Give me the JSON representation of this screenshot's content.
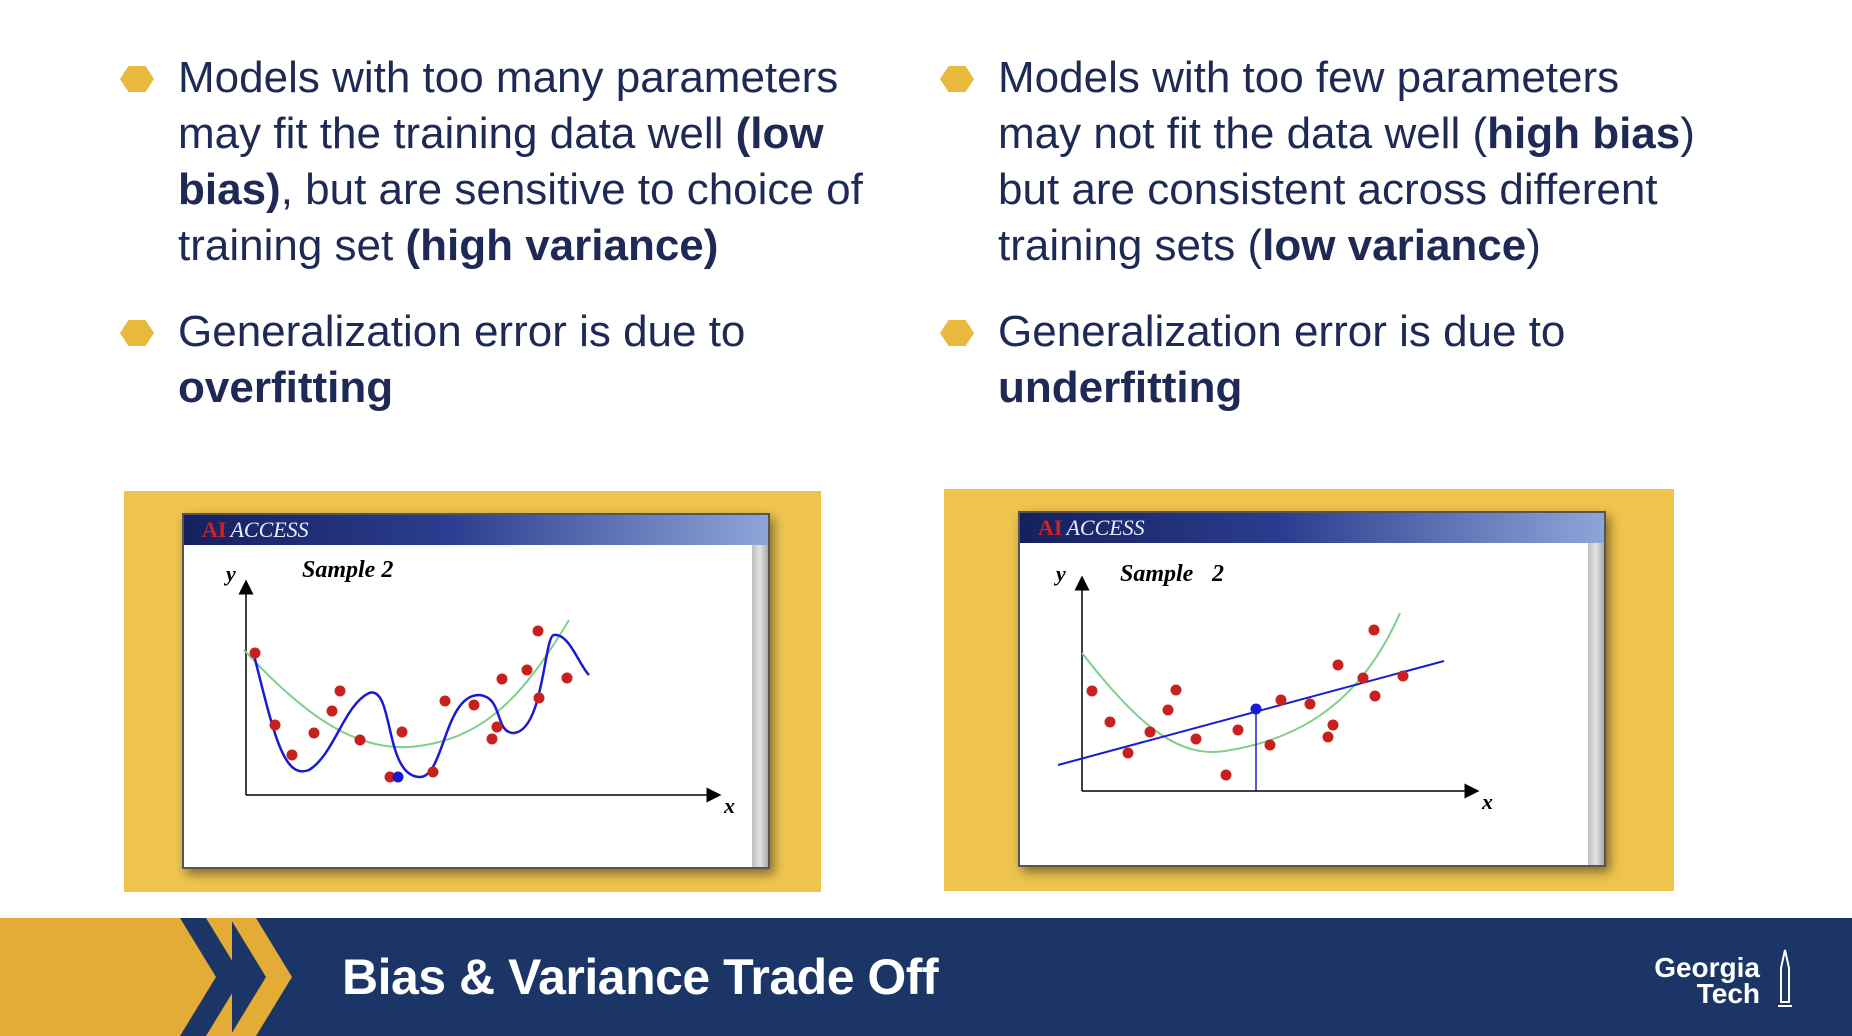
{
  "left_column": {
    "bullet1": {
      "parts": [
        {
          "text": "Models with too many parameters may fit the training data well ",
          "bold": false
        },
        {
          "text": "(low bias)",
          "bold": true
        },
        {
          "text": ", but are sensitive to choice of training set ",
          "bold": false
        },
        {
          "text": "(high variance)",
          "bold": true
        }
      ]
    },
    "bullet2": {
      "parts": [
        {
          "text": "Generalization error is due to ",
          "bold": false
        },
        {
          "text": "overfitting",
          "bold": true
        }
      ]
    }
  },
  "right_column": {
    "bullet1": {
      "parts": [
        {
          "text": "Models with too few parameters may not fit the data well (",
          "bold": false
        },
        {
          "text": "high bias",
          "bold": true
        },
        {
          "text": ") but are consistent across different training sets (",
          "bold": false
        },
        {
          "text": "low variance",
          "bold": true
        },
        {
          "text": ")",
          "bold": false
        }
      ]
    },
    "bullet2": {
      "parts": [
        {
          "text": "Generalization error is due to ",
          "bold": false
        },
        {
          "text": "underfitting",
          "bold": true
        }
      ]
    }
  },
  "figures": {
    "left": {
      "window_brand": "AI",
      "window_title": "ACCESS",
      "plot_title": "Sample 2",
      "x_label": "x",
      "y_label": "y"
    },
    "right": {
      "window_brand": "AI",
      "window_title": "ACCESS",
      "plot_title": "Sample",
      "plot_title_num": "2",
      "x_label": "x",
      "y_label": "y"
    }
  },
  "footer": {
    "title": "Bias & Variance Trade Off",
    "logo_line1": "Georgia",
    "logo_line2": "Tech"
  },
  "colors": {
    "navy_text": "#1e2a55",
    "bullet_gold": "#e9b93e",
    "frame_gold": "#eec44f",
    "footer_navy": "#1b3566",
    "footer_gold": "#e4ab36",
    "data_point": "#c8201e",
    "fit_curve": "#1a1ad0",
    "true_curve": "#7fcf8a"
  }
}
